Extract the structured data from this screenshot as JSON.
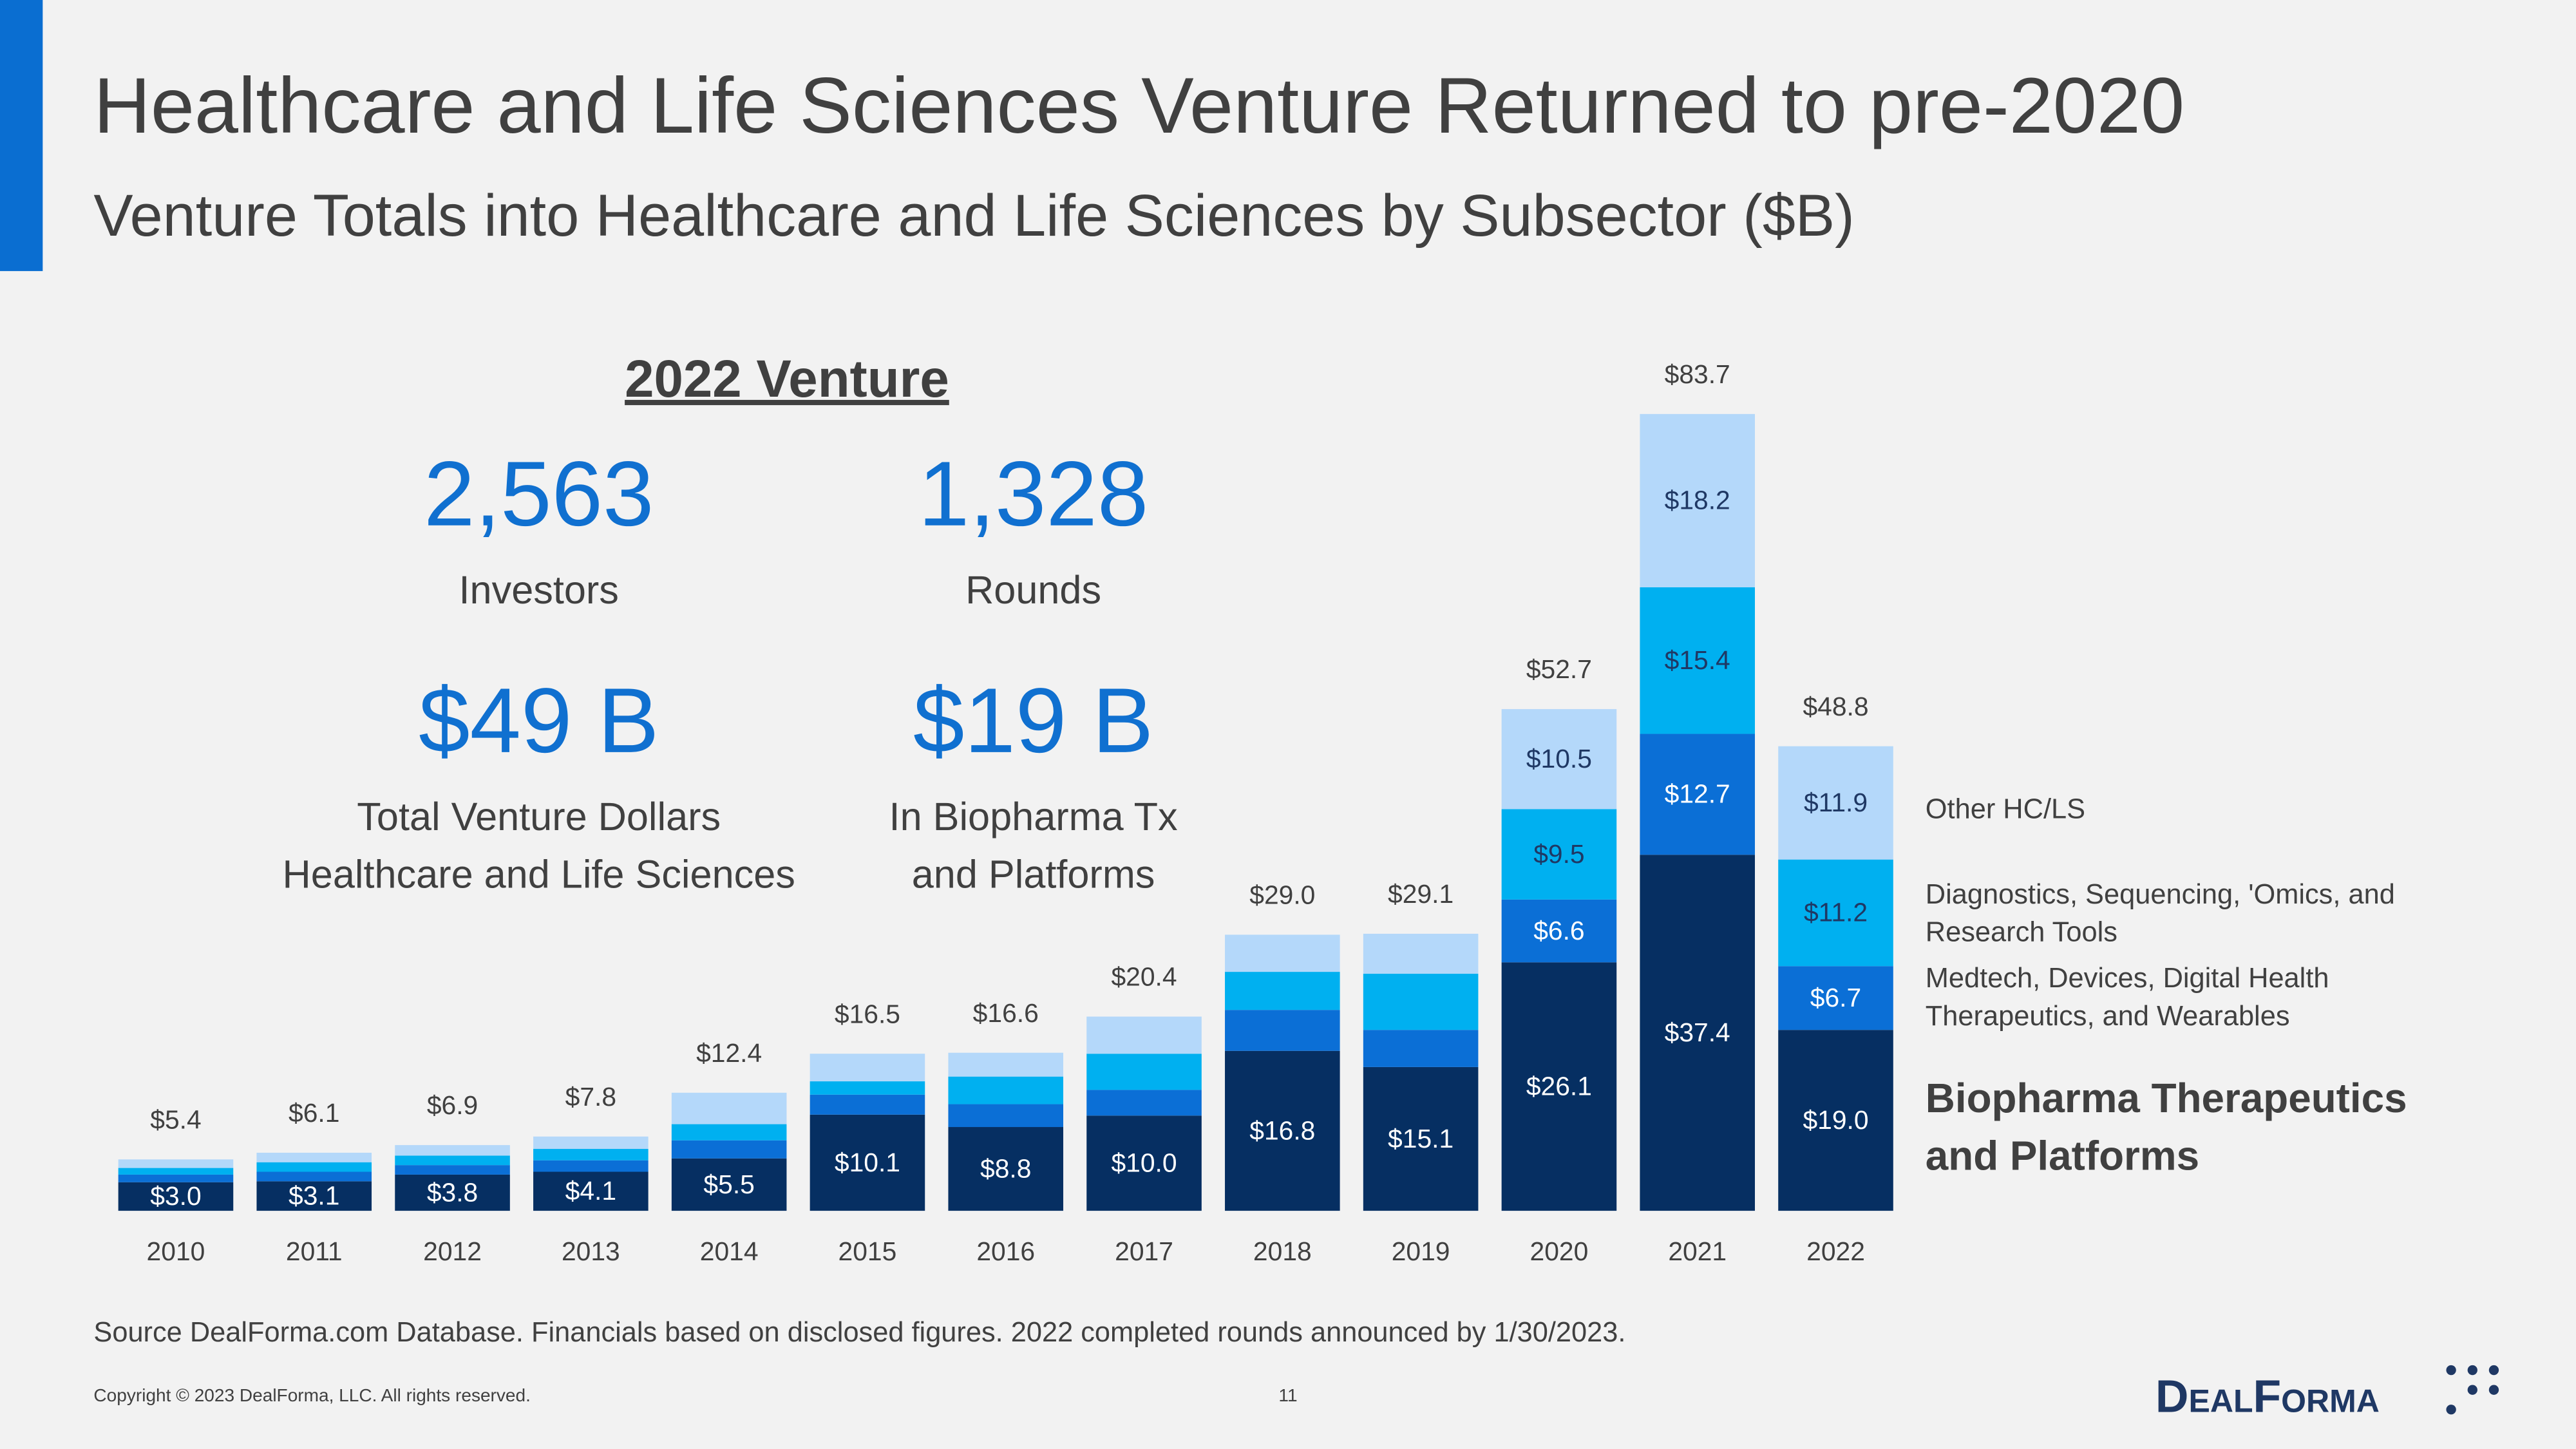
{
  "chart_data": {
    "type": "stacked_bar",
    "title": "Healthcare and Life Sciences Venture Returned to pre-2020",
    "subtitle": "Venture Totals into Healthcare and Life Sciences by Subsector ($B)",
    "categories": [
      "2010",
      "2011",
      "2012",
      "2013",
      "2014",
      "2015",
      "2016",
      "2017",
      "2018",
      "2019",
      "2020",
      "2021",
      "2022"
    ],
    "series": [
      {
        "name": "Biopharma Therapeutics and Platforms",
        "color": "#062f62",
        "values": [
          3.0,
          3.1,
          3.8,
          4.1,
          5.5,
          10.1,
          8.8,
          10.0,
          16.8,
          15.1,
          26.1,
          37.4,
          19.0
        ],
        "value_labels": [
          "$3.0",
          "$3.1",
          "$3.8",
          "$4.1",
          "$5.5",
          "$10.1",
          "$8.8",
          "$10.0",
          "$16.8",
          "$15.1",
          "$26.1",
          "$37.4",
          "$19.0"
        ]
      },
      {
        "name": "Medtech, Devices, Digital Health Therapeutics, and Wearables",
        "color": "#0b6fd6",
        "values": [
          0.8,
          1.0,
          1.0,
          1.2,
          1.9,
          2.1,
          2.4,
          2.7,
          4.3,
          3.9,
          6.6,
          12.7,
          6.7
        ],
        "value_labels": [
          null,
          null,
          null,
          null,
          null,
          null,
          null,
          null,
          null,
          null,
          "$6.6",
          "$12.7",
          "$6.7"
        ]
      },
      {
        "name": "Diagnostics, Sequencing, 'Omics, and Research Tools",
        "color": "#00b0f0",
        "values": [
          0.7,
          1.0,
          1.0,
          1.2,
          1.7,
          1.4,
          2.9,
          3.8,
          4.0,
          5.9,
          9.5,
          15.4,
          11.2
        ],
        "value_labels": [
          null,
          null,
          null,
          null,
          null,
          null,
          null,
          null,
          null,
          null,
          "$9.5",
          "$15.4",
          "$11.2"
        ]
      },
      {
        "name": "Other HC/LS",
        "color": "#b4d8fa",
        "values": [
          0.9,
          1.0,
          1.1,
          1.3,
          3.3,
          2.9,
          2.5,
          3.9,
          3.9,
          4.2,
          10.5,
          18.2,
          11.9
        ],
        "value_labels": [
          null,
          null,
          null,
          null,
          null,
          null,
          null,
          null,
          null,
          null,
          "$10.5",
          "$18.2",
          "$11.9"
        ]
      }
    ],
    "totals": [
      5.4,
      6.1,
      6.9,
      7.8,
      12.4,
      16.5,
      16.6,
      20.4,
      29.0,
      29.1,
      52.7,
      83.7,
      48.8
    ],
    "total_labels": [
      "$5.4",
      "$6.1",
      "$6.9",
      "$7.8",
      "$12.4",
      "$16.5",
      "$16.6",
      "$20.4",
      "$29.0",
      "$29.1",
      "$52.7",
      "$83.7",
      "$48.8"
    ]
  },
  "stats": {
    "heading": "2022 Venture",
    "items": [
      {
        "number": "2,563",
        "label": [
          "Investors"
        ]
      },
      {
        "number": "1,328",
        "label": [
          "Rounds"
        ]
      },
      {
        "number": "$49 B",
        "label": [
          "Total Venture Dollars",
          "Healthcare and Life Sciences"
        ]
      },
      {
        "number": "$19 B",
        "label": [
          "In Biopharma Tx",
          "and Platforms"
        ]
      }
    ]
  },
  "footer": {
    "source": "Source DealForma.com Database. Financials based on disclosed figures. 2022 completed rounds announced by 1/30/2023.",
    "copyright": "Copyright © 2023 DealForma, LLC. All rights reserved.",
    "page": "11",
    "logo": "DealForma"
  }
}
